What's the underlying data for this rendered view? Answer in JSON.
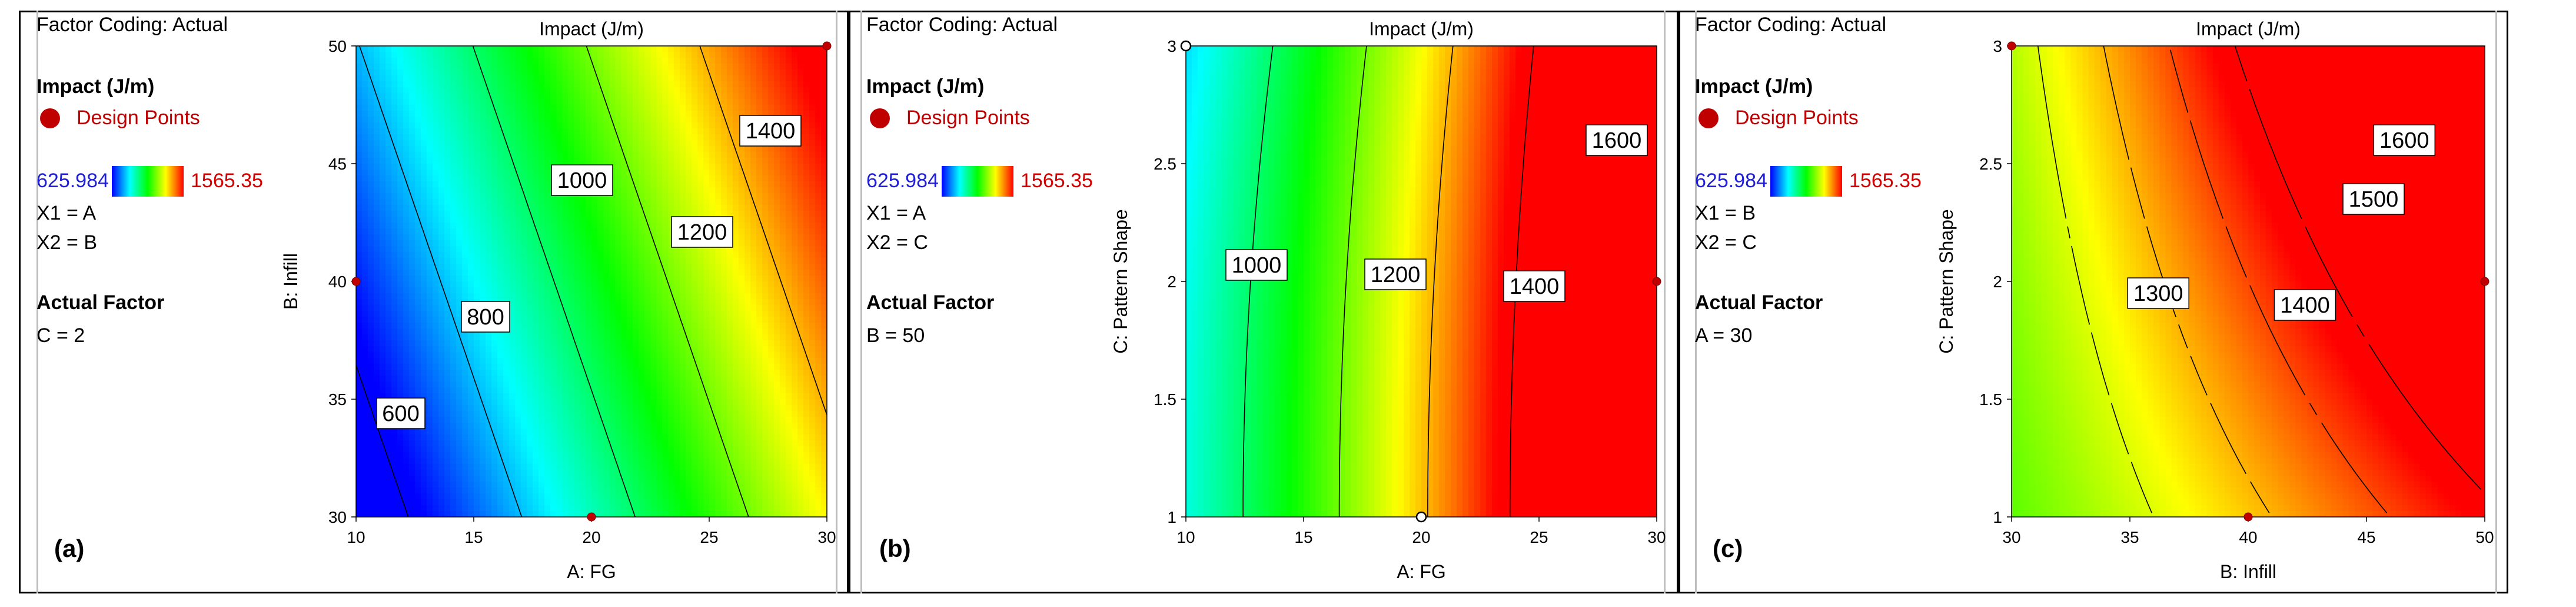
{
  "figure": {
    "panels": [
      {
        "id": "a",
        "panel_label": "(a)",
        "factor_coding": "Factor Coding: Actual",
        "response_label": "Impact (J/m)",
        "design_points_label": "Design Points",
        "color_scale": {
          "min": "625.984",
          "max": "1565.35"
        },
        "x1": "X1 = A",
        "x2": "X2 = B",
        "actual_factor_label": "Actual Factor",
        "actual_factor_value": "C = 2"
      },
      {
        "id": "b",
        "panel_label": "(b)",
        "factor_coding": "Factor Coding: Actual",
        "response_label": "Impact (J/m)",
        "design_points_label": "Design Points",
        "color_scale": {
          "min": "625.984",
          "max": "1565.35"
        },
        "x1": "X1 = A",
        "x2": "X2 = C",
        "actual_factor_label": "Actual Factor",
        "actual_factor_value": "B = 50"
      },
      {
        "id": "c",
        "panel_label": "(c)",
        "factor_coding": "Factor Coding: Actual",
        "response_label": "Impact (J/m)",
        "design_points_label": "Design Points",
        "color_scale": {
          "min": "625.984",
          "max": "1565.35"
        },
        "x1": "X1 = B",
        "x2": "X2 = C",
        "actual_factor_label": "Actual Factor",
        "actual_factor_value": "A = 30"
      }
    ]
  },
  "colors": {
    "low": "#0000ff",
    "c1": "#00ffff",
    "mid": "#00ff00",
    "c3": "#ffff00",
    "high": "#ff0000",
    "design_point": "#c00000",
    "legend_min": "#1f1fd4",
    "legend_max": "#d40000"
  },
  "chart_data": [
    {
      "type": "contour",
      "title": "Impact (J/m)",
      "xlabel": "A: FG",
      "ylabel": "B: Infill",
      "xlim": [
        10,
        30
      ],
      "ylim": [
        30,
        50
      ],
      "xticks": [
        "10",
        "15",
        "20",
        "25",
        "30"
      ],
      "yticks": [
        "30",
        "35",
        "40",
        "45",
        "50"
      ],
      "zlim": [
        625.984,
        1565.35
      ],
      "model": {
        "type": "linear",
        "z0": 508,
        "ax": 41.5,
        "by": 14.3,
        "x0": 10,
        "y0": 30
      },
      "contour_levels": [
        600,
        800,
        1000,
        1200,
        1400
      ],
      "contour_labels": [
        {
          "text": "600",
          "x": 11.9,
          "y": 34.4
        },
        {
          "text": "800",
          "x": 15.5,
          "y": 38.5
        },
        {
          "text": "1000",
          "x": 19.6,
          "y": 44.3
        },
        {
          "text": "1200",
          "x": 24.7,
          "y": 42.1
        },
        {
          "text": "1400",
          "x": 27.6,
          "y": 46.4
        }
      ],
      "design_points": [
        {
          "x": 10,
          "y": 40,
          "style": "filled"
        },
        {
          "x": 20,
          "y": 30,
          "style": "filled"
        },
        {
          "x": 30,
          "y": 50,
          "style": "filled"
        }
      ]
    },
    {
      "type": "contour",
      "title": "Impact (J/m)",
      "xlabel": "A: FG",
      "ylabel": "C: Pattern Shape",
      "xlim": [
        10,
        30
      ],
      "ylim": [
        1,
        3
      ],
      "xticks": [
        "10",
        "15",
        "20",
        "25",
        "30"
      ],
      "yticks": [
        "1",
        "1.5",
        "2",
        "2.5",
        "3"
      ],
      "yticklabels": [
        "1",
        "1.5",
        "2",
        "2.5",
        "3"
      ],
      "zlim": [
        625.984,
        1565.35
      ],
      "model": {
        "type": "quad_x",
        "z0": 890,
        "ax": 44,
        "ax2": 0.55,
        "by": -15,
        "x0": 10,
        "y0": 1
      },
      "contour_levels": [
        1000,
        1200,
        1400,
        1600
      ],
      "contour_labels": [
        {
          "text": "1000",
          "x": 13.0,
          "y": 2.07
        },
        {
          "text": "1200",
          "x": 18.9,
          "y": 2.03
        },
        {
          "text": "1400",
          "x": 24.8,
          "y": 1.98
        },
        {
          "text": "1600",
          "x": 28.3,
          "y": 2.6
        }
      ],
      "design_points": [
        {
          "x": 10,
          "y": 3,
          "style": "open"
        },
        {
          "x": 20,
          "y": 1,
          "style": "open"
        },
        {
          "x": 30,
          "y": 2,
          "style": "filled"
        }
      ]
    },
    {
      "type": "contour",
      "title": "Impact (J/m)",
      "xlabel": "B: Infill",
      "ylabel": "C: Pattern Shape",
      "xlim": [
        30,
        50
      ],
      "ylim": [
        1,
        3
      ],
      "xticks": [
        "30",
        "35",
        "40",
        "45",
        "50"
      ],
      "yticks": [
        "1",
        "1.5",
        "2",
        "2.5",
        "3"
      ],
      "zlim": [
        625.984,
        1565.35
      ],
      "model": {
        "type": "linear_xy",
        "z0": 1180,
        "ax": 20,
        "by": 40,
        "cxy": 8,
        "x0": 30,
        "y0": 1
      },
      "contour_levels": [
        1300,
        1400,
        1500,
        1600
      ],
      "contour_labels": [
        {
          "text": "1300",
          "x": 36.2,
          "y": 1.95
        },
        {
          "text": "1400",
          "x": 42.4,
          "y": 1.9
        },
        {
          "text": "1500",
          "x": 45.3,
          "y": 2.35
        },
        {
          "text": "1600",
          "x": 46.6,
          "y": 2.6
        }
      ],
      "design_points": [
        {
          "x": 30,
          "y": 3,
          "style": "filled"
        },
        {
          "x": 40,
          "y": 1,
          "style": "filled"
        },
        {
          "x": 50,
          "y": 2,
          "style": "filled"
        }
      ]
    }
  ]
}
